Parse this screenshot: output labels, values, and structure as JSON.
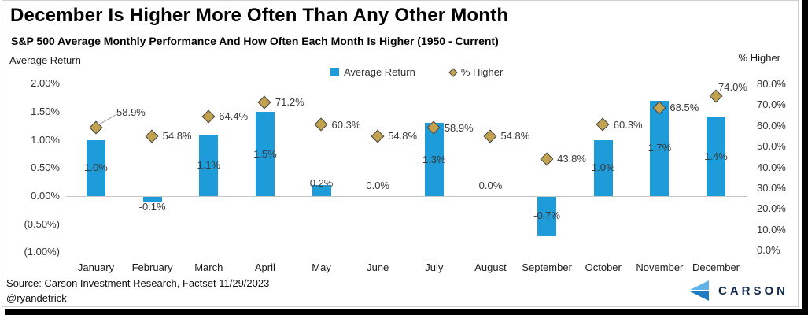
{
  "title": "December Is Higher More Often Than Any Other Month",
  "subtitle": "S&P 500 Average Monthly Performance And How Often Each Month Is Higher (1950 - Current)",
  "left_axis": {
    "title": "Average Return",
    "ticks": [
      "2.00%",
      "1.50%",
      "1.00%",
      "0.50%",
      "0.00%",
      "(0.50%)",
      "(1.00%)"
    ],
    "tick_values": [
      2.0,
      1.5,
      1.0,
      0.5,
      0.0,
      -0.5,
      -1.0
    ]
  },
  "right_axis": {
    "title": "% Higher",
    "ticks": [
      "80.0%",
      "70.0%",
      "60.0%",
      "50.0%",
      "40.0%",
      "30.0%",
      "20.0%",
      "10.0%",
      "0.0%"
    ],
    "tick_values": [
      80,
      70,
      60,
      50,
      40,
      30,
      20,
      10,
      0
    ]
  },
  "legend": {
    "items": [
      {
        "label": "Average Return",
        "marker": "square",
        "color": "#1e9cda"
      },
      {
        "label": "% Higher",
        "marker": "diamond",
        "color": "#c3a24f"
      }
    ]
  },
  "colors": {
    "bar_blue": "#1e9cda",
    "diamond_gold": "#c3a24f",
    "diamond_border": "#3f4450",
    "logo_navy": "#14284b",
    "logo_light_blue": "#5fb3e6",
    "logo_dark_blue": "#1f7bc0"
  },
  "chart_data": {
    "type": "combo (bar + diamond scatter, dual axis)",
    "categories": [
      "January",
      "February",
      "March",
      "April",
      "May",
      "June",
      "July",
      "August",
      "September",
      "October",
      "November",
      "December"
    ],
    "series": [
      {
        "name": "Average Return",
        "type": "bar",
        "axis": "left",
        "values": [
          1.0,
          -0.1,
          1.1,
          1.5,
          0.2,
          0.0,
          1.3,
          0.0,
          -0.7,
          1.0,
          1.7,
          1.4
        ],
        "labels": [
          "1.0%",
          "-0.1%",
          "1.1%",
          "1.5%",
          "0.2%",
          "0.0%",
          "1.3%",
          "0.0%",
          "-0.7%",
          "1.0%",
          "1.7%",
          "1.4%"
        ]
      },
      {
        "name": "% Higher",
        "type": "scatter",
        "marker": "diamond",
        "axis": "right",
        "values": [
          58.9,
          54.8,
          64.4,
          71.2,
          60.3,
          54.8,
          58.9,
          54.8,
          43.8,
          60.3,
          68.5,
          74.0
        ],
        "labels": [
          "58.9%",
          "54.8%",
          "64.4%",
          "71.2%",
          "60.3%",
          "54.8%",
          "58.9%",
          "54.8%",
          "43.8%",
          "60.3%",
          "68.5%",
          "74.0%"
        ]
      }
    ],
    "left_axis_range": [
      -1.0,
      2.0
    ],
    "right_axis_range": [
      0,
      80
    ],
    "gridlines": "zero line only",
    "legend_position": "top-center"
  },
  "footer": {
    "source_line1": "Source: Carson Investment Research, Factset 11/29/2023",
    "source_line2": "@ryandetrick"
  },
  "logo": {
    "text": "CARSON"
  }
}
